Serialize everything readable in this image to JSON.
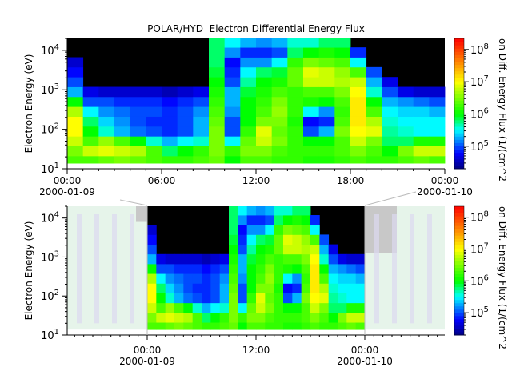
{
  "chart_data": [
    {
      "type": "heatmap",
      "title": "POLAR/HYD  Electron Differential Energy Flux",
      "ylabel": "Electron Energy (eV)",
      "zlabel": "on Diff. Energy Flux (1/(cm^2",
      "y_scale": "log",
      "ylim": [
        10,
        20000
      ],
      "z_scale": "log",
      "zlim": [
        20000,
        220000000
      ],
      "colormap": "rainbow (dark blue - blue - cyan - green - yellow - orange - red), black = no data",
      "x_range": [
        "2000-01-09 00:00",
        "2000-01-10 00:00"
      ],
      "x_tick_labels": [
        {
          "time": "00:00",
          "date": "2000-01-09"
        },
        {
          "time": "06:00",
          "date": ""
        },
        {
          "time": "12:00",
          "date": ""
        },
        {
          "time": "18:00",
          "date": ""
        },
        {
          "time": "00:00",
          "date": "2000-01-10"
        }
      ],
      "y_tick_labels": [
        {
          "base": "10",
          "exp": "1"
        },
        {
          "base": "10",
          "exp": "2"
        },
        {
          "base": "10",
          "exp": "3"
        },
        {
          "base": "10",
          "exp": "4"
        }
      ],
      "z_tick_labels": [
        {
          "base": "10",
          "exp": "5"
        },
        {
          "base": "10",
          "exp": "6"
        },
        {
          "base": "10",
          "exp": "7"
        },
        {
          "base": "10",
          "exp": "8"
        }
      ],
      "x_hours": [
        0.5,
        1.5,
        2.5,
        3.5,
        4.5,
        5.5,
        6.5,
        7.5,
        8.5,
        9.5,
        10.5,
        11.5,
        12.5,
        13.5,
        14.5,
        15.5,
        16.5,
        17.5,
        18.5,
        19.5,
        20.5,
        21.5,
        22.5,
        23.5
      ],
      "log10_energy_bins": [
        1.2,
        1.45,
        1.7,
        1.95,
        2.2,
        2.45,
        2.7,
        2.95,
        3.2,
        3.45,
        3.7,
        3.95,
        4.2
      ],
      "log10_flux": [
        [
          6.3,
          6.5,
          6.8,
          7.0,
          7.0,
          6.7,
          6.0,
          5.3,
          5.0,
          4.8,
          4.6,
          null,
          null
        ],
        [
          6.3,
          6.8,
          6.3,
          6.0,
          5.8,
          5.5,
          5.0,
          4.7,
          null,
          null,
          null,
          null,
          null
        ],
        [
          6.4,
          6.9,
          6.6,
          5.6,
          5.4,
          5.2,
          5.0,
          4.6,
          null,
          null,
          null,
          null,
          null
        ],
        [
          6.5,
          6.8,
          6.3,
          5.3,
          5.2,
          5.1,
          4.9,
          4.6,
          null,
          null,
          null,
          null,
          null
        ],
        [
          6.4,
          6.7,
          6.0,
          5.1,
          5.0,
          5.0,
          4.9,
          4.6,
          null,
          null,
          null,
          null,
          null
        ],
        [
          6.3,
          6.3,
          5.6,
          5.0,
          4.9,
          5.0,
          4.9,
          4.6,
          null,
          null,
          null,
          null,
          null
        ],
        [
          6.2,
          5.8,
          5.3,
          4.9,
          4.9,
          4.9,
          4.8,
          4.5,
          null,
          null,
          null,
          null,
          null
        ],
        [
          6.2,
          6.0,
          5.5,
          5.0,
          5.0,
          5.0,
          4.9,
          4.6,
          null,
          null,
          null,
          null,
          null
        ],
        [
          6.3,
          6.2,
          5.6,
          5.3,
          5.3,
          5.2,
          5.0,
          4.7,
          null,
          null,
          null,
          null,
          null
        ],
        [
          6.4,
          6.5,
          6.5,
          6.5,
          6.4,
          6.3,
          6.2,
          6.1,
          6.0,
          5.9,
          5.8,
          5.8,
          5.8
        ],
        [
          6.0,
          6.2,
          5.5,
          5.0,
          5.0,
          5.2,
          5.3,
          5.3,
          5.0,
          4.9,
          4.8,
          5.2,
          5.5
        ],
        [
          6.3,
          6.5,
          6.4,
          6.2,
          6.0,
          6.0,
          6.0,
          5.9,
          5.7,
          5.5,
          5.2,
          4.9,
          5.3
        ],
        [
          6.3,
          6.5,
          6.8,
          6.9,
          6.5,
          6.3,
          6.2,
          6.1,
          6.0,
          5.8,
          5.2,
          4.9,
          5.2
        ],
        [
          6.2,
          6.3,
          6.5,
          6.4,
          6.5,
          6.6,
          6.5,
          6.3,
          6.1,
          5.9,
          5.5,
          5.0,
          5.3
        ],
        [
          6.2,
          6.2,
          6.2,
          6.2,
          6.1,
          6.2,
          6.2,
          6.2,
          6.4,
          6.4,
          6.2,
          5.8,
          5.6
        ],
        [
          6.1,
          6.2,
          6.0,
          5.0,
          4.8,
          5.5,
          6.1,
          6.3,
          6.8,
          6.9,
          6.5,
          6.0,
          5.6
        ],
        [
          6.1,
          6.2,
          6.0,
          5.3,
          4.9,
          5.2,
          6.0,
          6.3,
          6.8,
          6.8,
          6.4,
          6.1,
          5.8
        ],
        [
          6.2,
          6.3,
          6.3,
          6.5,
          6.3,
          6.2,
          6.3,
          6.5,
          6.7,
          6.6,
          6.3,
          6.0,
          5.8
        ],
        [
          6.3,
          6.5,
          6.8,
          7.0,
          7.1,
          7.1,
          7.1,
          7.0,
          6.8,
          6.3,
          5.5,
          4.9,
          null
        ],
        [
          6.2,
          6.3,
          6.5,
          6.9,
          6.7,
          6.3,
          6.0,
          5.6,
          5.3,
          5.0,
          null,
          null,
          null
        ],
        [
          6.2,
          6.0,
          5.8,
          5.7,
          5.6,
          5.5,
          5.3,
          5.0,
          4.7,
          null,
          null,
          null,
          null
        ],
        [
          6.3,
          6.5,
          5.8,
          5.6,
          5.5,
          5.4,
          5.2,
          4.7,
          null,
          null,
          null,
          null,
          null
        ],
        [
          6.4,
          6.8,
          6.1,
          5.5,
          5.5,
          5.4,
          5.1,
          4.6,
          null,
          null,
          null,
          null,
          null
        ],
        [
          6.3,
          6.8,
          6.1,
          5.5,
          5.5,
          5.3,
          5.0,
          4.6,
          null,
          null,
          null,
          null,
          null
        ]
      ]
    },
    {
      "type": "heatmap",
      "title": "",
      "ylabel": "Electron Energy (eV)",
      "zlabel": "on Diff. Energy Flux (1/(cm^2",
      "y_scale": "log",
      "ylim": [
        10,
        20000
      ],
      "x_range": [
        "2000-01-08 15:10",
        "2000-01-10 08:50"
      ],
      "context_overview": true,
      "x_tick_labels": [
        {
          "time": "00:00",
          "date": "2000-01-09"
        },
        {
          "time": "12:00",
          "date": ""
        },
        {
          "time": "00:00",
          "date": "2000-01-10"
        }
      ],
      "y_tick_labels": [
        {
          "base": "10",
          "exp": "1"
        },
        {
          "base": "10",
          "exp": "2"
        },
        {
          "base": "10",
          "exp": "3"
        },
        {
          "base": "10",
          "exp": "4"
        }
      ],
      "z_tick_labels": [
        {
          "base": "10",
          "exp": "5"
        },
        {
          "base": "10",
          "exp": "6"
        },
        {
          "base": "10",
          "exp": "7"
        },
        {
          "base": "10",
          "exp": "8"
        }
      ]
    }
  ]
}
